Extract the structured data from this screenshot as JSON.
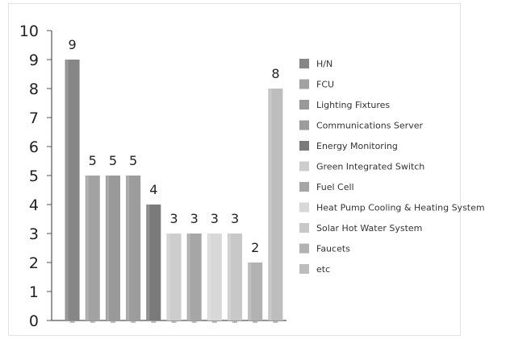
{
  "chart_data": {
    "type": "bar",
    "title": "",
    "xlabel": "",
    "ylabel": "",
    "ylim": [
      0,
      10
    ],
    "yticks": [
      "0",
      "1",
      "2",
      "3",
      "4",
      "5",
      "6",
      "7",
      "8",
      "9",
      "10"
    ],
    "grid": false,
    "legend_position": "right",
    "categories": [
      "H/N",
      "FCU",
      "Lighting Fixtures",
      "Communications Server",
      "Energy Monitoring",
      "Green Integrated Switch",
      "Fuel Cell",
      "Heat Pump Cooling & Heating System",
      "Solar Hot Water System",
      "Faucets",
      "etc"
    ],
    "values": [
      9,
      5,
      5,
      5,
      4,
      3,
      3,
      3,
      3,
      2,
      8
    ],
    "colors": [
      "#868686",
      "#a2a2a2",
      "#999999",
      "#9c9c9c",
      "#7a7a7a",
      "#cdcdcd",
      "#a6a6a6",
      "#d8d8d8",
      "#c8c8c8",
      "#b2b2b2",
      "#bdbdbd"
    ]
  }
}
